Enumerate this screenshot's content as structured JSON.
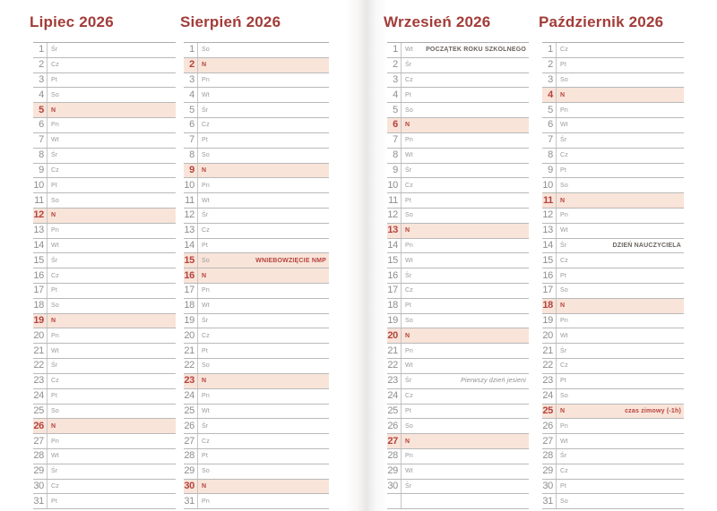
{
  "calendar": {
    "colors": {
      "accent": "#a23c38",
      "sunday_red": "#b5433d",
      "highlight": "#f9e4d9",
      "text_gray": "#8e8e8e",
      "note_dark": "#6b635d",
      "rule_gray": "#b9b9b9"
    },
    "day_abbrevs": [
      "Pn",
      "Wt",
      "Śr",
      "Cz",
      "Pt",
      "So",
      "N"
    ],
    "months": [
      {
        "title": "Lipiec 2026",
        "days": [
          {
            "num": "1",
            "dow": "Śr"
          },
          {
            "num": "2",
            "dow": "Cz"
          },
          {
            "num": "3",
            "dow": "Pt"
          },
          {
            "num": "4",
            "dow": "So"
          },
          {
            "num": "5",
            "dow": "N",
            "sunday": true
          },
          {
            "num": "6",
            "dow": "Pn"
          },
          {
            "num": "7",
            "dow": "Wt"
          },
          {
            "num": "8",
            "dow": "Śr"
          },
          {
            "num": "9",
            "dow": "Cz"
          },
          {
            "num": "10",
            "dow": "Pt"
          },
          {
            "num": "11",
            "dow": "So"
          },
          {
            "num": "12",
            "dow": "N",
            "sunday": true
          },
          {
            "num": "13",
            "dow": "Pn"
          },
          {
            "num": "14",
            "dow": "Wt"
          },
          {
            "num": "15",
            "dow": "Śr"
          },
          {
            "num": "16",
            "dow": "Cz"
          },
          {
            "num": "17",
            "dow": "Pt"
          },
          {
            "num": "18",
            "dow": "So"
          },
          {
            "num": "19",
            "dow": "N",
            "sunday": true
          },
          {
            "num": "20",
            "dow": "Pn"
          },
          {
            "num": "21",
            "dow": "Wt"
          },
          {
            "num": "22",
            "dow": "Śr"
          },
          {
            "num": "23",
            "dow": "Cz"
          },
          {
            "num": "24",
            "dow": "Pt"
          },
          {
            "num": "25",
            "dow": "So"
          },
          {
            "num": "26",
            "dow": "N",
            "sunday": true
          },
          {
            "num": "27",
            "dow": "Pn"
          },
          {
            "num": "28",
            "dow": "Wt"
          },
          {
            "num": "29",
            "dow": "Śr"
          },
          {
            "num": "30",
            "dow": "Cz"
          },
          {
            "num": "31",
            "dow": "Pt"
          }
        ]
      },
      {
        "title": "Sierpień 2026",
        "days": [
          {
            "num": "1",
            "dow": "So"
          },
          {
            "num": "2",
            "dow": "N",
            "sunday": true
          },
          {
            "num": "3",
            "dow": "Pn"
          },
          {
            "num": "4",
            "dow": "Wt"
          },
          {
            "num": "5",
            "dow": "Śr"
          },
          {
            "num": "6",
            "dow": "Cz"
          },
          {
            "num": "7",
            "dow": "Pt"
          },
          {
            "num": "8",
            "dow": "So"
          },
          {
            "num": "9",
            "dow": "N",
            "sunday": true
          },
          {
            "num": "10",
            "dow": "Pn"
          },
          {
            "num": "11",
            "dow": "Wt"
          },
          {
            "num": "12",
            "dow": "Śr"
          },
          {
            "num": "13",
            "dow": "Cz"
          },
          {
            "num": "14",
            "dow": "Pt"
          },
          {
            "num": "15",
            "dow": "So",
            "holiday": true,
            "note": "WNIEBOWZIĘCIE NMP",
            "note_style": "red"
          },
          {
            "num": "16",
            "dow": "N",
            "sunday": true
          },
          {
            "num": "17",
            "dow": "Pn"
          },
          {
            "num": "18",
            "dow": "Wt"
          },
          {
            "num": "19",
            "dow": "Śr"
          },
          {
            "num": "20",
            "dow": "Cz"
          },
          {
            "num": "21",
            "dow": "Pt"
          },
          {
            "num": "22",
            "dow": "So"
          },
          {
            "num": "23",
            "dow": "N",
            "sunday": true
          },
          {
            "num": "24",
            "dow": "Pn"
          },
          {
            "num": "25",
            "dow": "Wt"
          },
          {
            "num": "26",
            "dow": "Śr"
          },
          {
            "num": "27",
            "dow": "Cz"
          },
          {
            "num": "28",
            "dow": "Pt"
          },
          {
            "num": "29",
            "dow": "So"
          },
          {
            "num": "30",
            "dow": "N",
            "sunday": true
          },
          {
            "num": "31",
            "dow": "Pn"
          }
        ]
      },
      {
        "title": "Wrzesień 2026",
        "days": [
          {
            "num": "1",
            "dow": "Wt",
            "note": "POCZĄTEK ROKU SZKOLNEGO",
            "note_style": "dark"
          },
          {
            "num": "2",
            "dow": "Śr"
          },
          {
            "num": "3",
            "dow": "Cz"
          },
          {
            "num": "4",
            "dow": "Pt"
          },
          {
            "num": "5",
            "dow": "So"
          },
          {
            "num": "6",
            "dow": "N",
            "sunday": true
          },
          {
            "num": "7",
            "dow": "Pn"
          },
          {
            "num": "8",
            "dow": "Wt"
          },
          {
            "num": "9",
            "dow": "Śr"
          },
          {
            "num": "10",
            "dow": "Cz"
          },
          {
            "num": "11",
            "dow": "Pt"
          },
          {
            "num": "12",
            "dow": "So"
          },
          {
            "num": "13",
            "dow": "N",
            "sunday": true
          },
          {
            "num": "14",
            "dow": "Pn"
          },
          {
            "num": "15",
            "dow": "Wt"
          },
          {
            "num": "16",
            "dow": "Śr"
          },
          {
            "num": "17",
            "dow": "Cz"
          },
          {
            "num": "18",
            "dow": "Pt"
          },
          {
            "num": "19",
            "dow": "So"
          },
          {
            "num": "20",
            "dow": "N",
            "sunday": true
          },
          {
            "num": "21",
            "dow": "Pn"
          },
          {
            "num": "22",
            "dow": "Wt"
          },
          {
            "num": "23",
            "dow": "Śr",
            "note": "Pierwszy dzień jesieni",
            "note_style": "italic"
          },
          {
            "num": "24",
            "dow": "Cz"
          },
          {
            "num": "25",
            "dow": "Pt"
          },
          {
            "num": "26",
            "dow": "So"
          },
          {
            "num": "27",
            "dow": "N",
            "sunday": true
          },
          {
            "num": "28",
            "dow": "Pn"
          },
          {
            "num": "29",
            "dow": "Wt"
          },
          {
            "num": "30",
            "dow": "Śr"
          },
          {
            "num": "",
            "dow": ""
          }
        ]
      },
      {
        "title": "Październik 2026",
        "days": [
          {
            "num": "1",
            "dow": "Cz"
          },
          {
            "num": "2",
            "dow": "Pt"
          },
          {
            "num": "3",
            "dow": "So"
          },
          {
            "num": "4",
            "dow": "N",
            "sunday": true
          },
          {
            "num": "5",
            "dow": "Pn"
          },
          {
            "num": "6",
            "dow": "Wt"
          },
          {
            "num": "7",
            "dow": "Śr"
          },
          {
            "num": "8",
            "dow": "Cz"
          },
          {
            "num": "9",
            "dow": "Pt"
          },
          {
            "num": "10",
            "dow": "So"
          },
          {
            "num": "11",
            "dow": "N",
            "sunday": true
          },
          {
            "num": "12",
            "dow": "Pn"
          },
          {
            "num": "13",
            "dow": "Wt"
          },
          {
            "num": "14",
            "dow": "Śr",
            "note": "DZIEŃ NAUCZYCIELA",
            "note_style": "dark"
          },
          {
            "num": "15",
            "dow": "Cz"
          },
          {
            "num": "16",
            "dow": "Pt"
          },
          {
            "num": "17",
            "dow": "So"
          },
          {
            "num": "18",
            "dow": "N",
            "sunday": true
          },
          {
            "num": "19",
            "dow": "Pn"
          },
          {
            "num": "20",
            "dow": "Wt"
          },
          {
            "num": "21",
            "dow": "Śr"
          },
          {
            "num": "22",
            "dow": "Cz"
          },
          {
            "num": "23",
            "dow": "Pt"
          },
          {
            "num": "24",
            "dow": "So"
          },
          {
            "num": "25",
            "dow": "N",
            "sunday": true,
            "note": "czas zimowy (-1h)",
            "note_style": "red"
          },
          {
            "num": "26",
            "dow": "Pn"
          },
          {
            "num": "27",
            "dow": "Wt"
          },
          {
            "num": "28",
            "dow": "Śr"
          },
          {
            "num": "29",
            "dow": "Cz"
          },
          {
            "num": "30",
            "dow": "Pt"
          },
          {
            "num": "31",
            "dow": "So"
          }
        ]
      }
    ]
  }
}
